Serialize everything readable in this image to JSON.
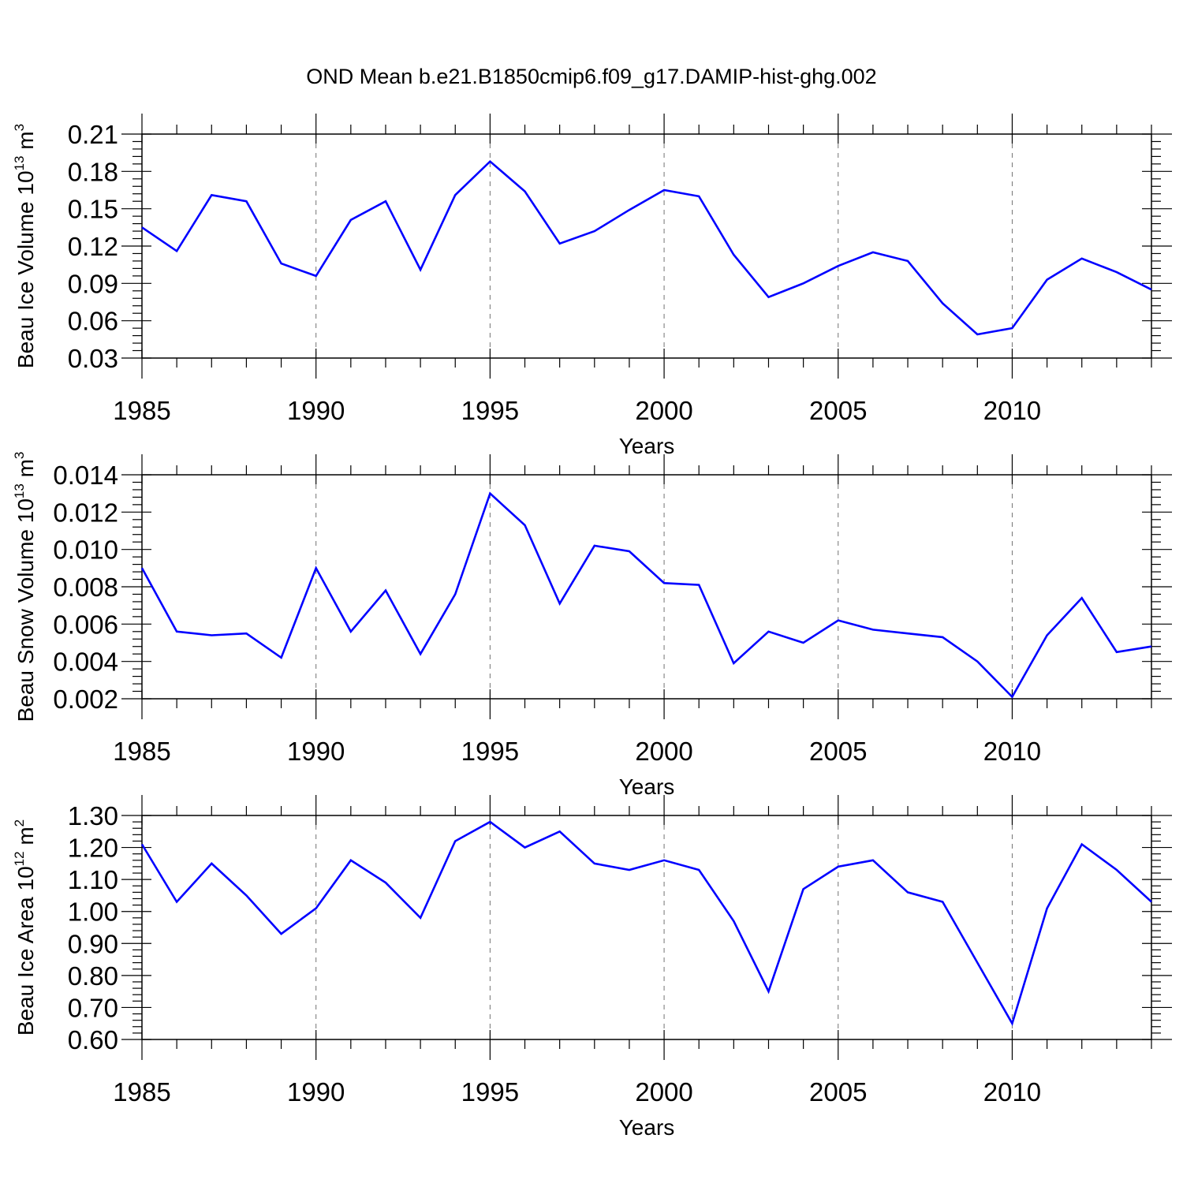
{
  "title": "OND Mean b.e21.B1850cmip6.f09_g17.DAMIP-hist-ghg.002",
  "colors": {
    "line": "#0000ff",
    "axis": "#000000",
    "background": "#ffffff"
  },
  "chart_data": [
    {
      "type": "line",
      "title": "OND Mean b.e21.B1850cmip6.f09_g17.DAMIP-hist-ghg.002",
      "xlabel": "Years",
      "ylabel": "Beau Ice Volume 10",
      "ylabel_sup": "13",
      "ylabel_unit": "m",
      "ylabel_unit_sup": "3",
      "xlim": [
        1985,
        2014
      ],
      "ylim": [
        0.03,
        0.21
      ],
      "x_ticks": [
        1985,
        1990,
        1995,
        2000,
        2005,
        2010
      ],
      "y_ticks": [
        "0.03",
        "0.06",
        "0.09",
        "0.12",
        "0.15",
        "0.18",
        "0.21"
      ],
      "grid": "dashed vertical at major x ticks",
      "x": [
        1985,
        1986,
        1987,
        1988,
        1989,
        1990,
        1991,
        1992,
        1993,
        1994,
        1995,
        1996,
        1997,
        1998,
        1999,
        2000,
        2001,
        2002,
        2003,
        2004,
        2005,
        2006,
        2007,
        2008,
        2009,
        2010,
        2011,
        2012,
        2013,
        2014
      ],
      "series": [
        {
          "name": "Beau Ice Volume",
          "values": [
            0.135,
            0.116,
            0.161,
            0.156,
            0.106,
            0.096,
            0.141,
            0.156,
            0.101,
            0.161,
            0.188,
            0.164,
            0.122,
            0.132,
            0.149,
            0.165,
            0.16,
            0.113,
            0.079,
            0.09,
            0.104,
            0.115,
            0.108,
            0.074,
            0.049,
            0.054,
            0.093,
            0.11,
            0.099,
            0.085
          ]
        }
      ]
    },
    {
      "type": "line",
      "xlabel": "Years",
      "ylabel": "Beau Snow Volume 10",
      "ylabel_sup": "13",
      "ylabel_unit": "m",
      "ylabel_unit_sup": "3",
      "xlim": [
        1985,
        2014
      ],
      "ylim": [
        0.002,
        0.014
      ],
      "x_ticks": [
        1985,
        1990,
        1995,
        2000,
        2005,
        2010
      ],
      "y_ticks": [
        "0.002",
        "0.004",
        "0.006",
        "0.008",
        "0.010",
        "0.012",
        "0.014"
      ],
      "grid": "dashed vertical at major x ticks",
      "x": [
        1985,
        1986,
        1987,
        1988,
        1989,
        1990,
        1991,
        1992,
        1993,
        1994,
        1995,
        1996,
        1997,
        1998,
        1999,
        2000,
        2001,
        2002,
        2003,
        2004,
        2005,
        2006,
        2007,
        2008,
        2009,
        2010,
        2011,
        2012,
        2013,
        2014
      ],
      "series": [
        {
          "name": "Beau Snow Volume",
          "values": [
            0.009,
            0.0056,
            0.0054,
            0.0055,
            0.0042,
            0.009,
            0.0056,
            0.0078,
            0.0044,
            0.0076,
            0.013,
            0.0113,
            0.0071,
            0.0102,
            0.0099,
            0.0082,
            0.0081,
            0.0039,
            0.0056,
            0.005,
            0.0062,
            0.0057,
            0.0055,
            0.0053,
            0.004,
            0.0021,
            0.0054,
            0.0074,
            0.0045,
            0.0048
          ]
        }
      ]
    },
    {
      "type": "line",
      "xlabel": "Years",
      "ylabel": "Beau Ice Area 10",
      "ylabel_sup": "12",
      "ylabel_unit": "m",
      "ylabel_unit_sup": "2",
      "xlim": [
        1985,
        2014
      ],
      "ylim": [
        0.6,
        1.3
      ],
      "x_ticks": [
        1985,
        1990,
        1995,
        2000,
        2005,
        2010
      ],
      "y_ticks": [
        "0.60",
        "0.70",
        "0.80",
        "0.90",
        "1.00",
        "1.10",
        "1.20",
        "1.30"
      ],
      "grid": "dashed vertical at major x ticks",
      "x": [
        1985,
        1986,
        1987,
        1988,
        1989,
        1990,
        1991,
        1992,
        1993,
        1994,
        1995,
        1996,
        1997,
        1998,
        1999,
        2000,
        2001,
        2002,
        2003,
        2004,
        2005,
        2006,
        2007,
        2008,
        2009,
        2010,
        2011,
        2012,
        2013,
        2014
      ],
      "series": [
        {
          "name": "Beau Ice Area",
          "values": [
            1.21,
            1.03,
            1.15,
            1.05,
            0.93,
            1.01,
            1.16,
            1.09,
            0.98,
            1.22,
            1.28,
            1.2,
            1.25,
            1.15,
            1.13,
            1.16,
            1.13,
            0.97,
            0.75,
            1.07,
            1.14,
            1.16,
            1.06,
            1.03,
            0.84,
            0.65,
            1.01,
            1.21,
            1.13,
            1.03
          ]
        }
      ]
    }
  ]
}
